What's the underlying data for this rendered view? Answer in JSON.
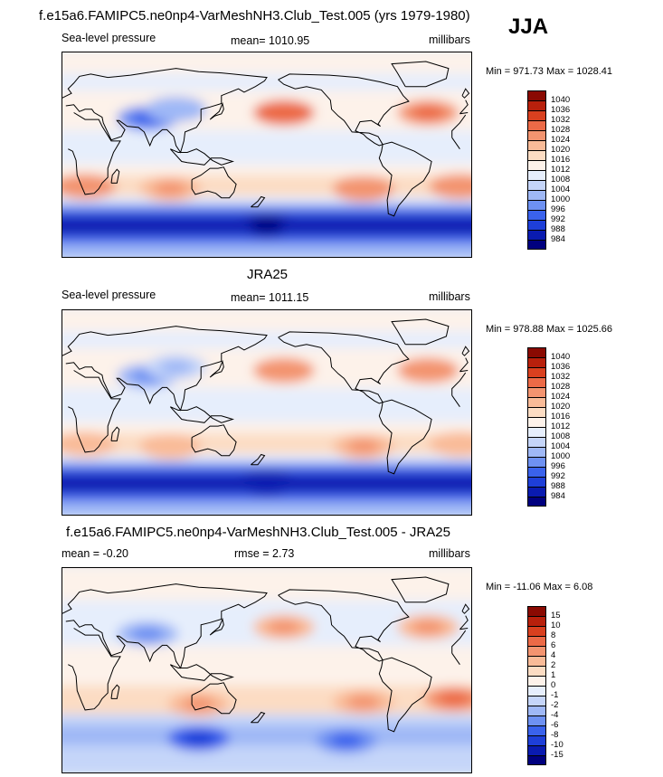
{
  "header": {
    "title": "f.e15a6.FAMIPC5.ne0np4-VarMeshNH3.Club_Test.005 (yrs 1979-1980)",
    "season": "JJA"
  },
  "colors": {
    "slp": [
      "#00007f",
      "#0a1bb0",
      "#1e3fd8",
      "#3a62ec",
      "#6e91f2",
      "#9fb8f6",
      "#c5d5f9",
      "#e6eefc",
      "#fdf2ea",
      "#fcdcc3",
      "#f9bb98",
      "#f39470",
      "#ec6a47",
      "#d9401f",
      "#b8200c",
      "#8a0a02"
    ],
    "diff": [
      "#00007f",
      "#0a1bb0",
      "#1e3fd8",
      "#3a62ec",
      "#6e91f2",
      "#9fb8f6",
      "#c5d5f9",
      "#e6eefc",
      "#fdf2ea",
      "#fcdcc3",
      "#f9bb98",
      "#f39470",
      "#ec6a47",
      "#d9401f",
      "#b8200c",
      "#8a0a02"
    ]
  },
  "chart_data": [
    {
      "type": "heatmap",
      "title": "",
      "variable": "Sea-level pressure",
      "mean_label": "mean= 1010.95",
      "units": "millibars",
      "minmax": "Min = 971.73 Max = 1028.41",
      "stats": {
        "mean": 1010.95,
        "min": 971.73,
        "max": 1028.41
      },
      "levels": [
        "1040",
        "1036",
        "1032",
        "1028",
        "1024",
        "1020",
        "1016",
        "1012",
        "1008",
        "1004",
        "1000",
        "996",
        "992",
        "988",
        "984"
      ],
      "features": [
        {
          "lon": 195,
          "lat": 37,
          "value": 1028
        },
        {
          "lon": 322,
          "lat": 37,
          "value": 1026
        },
        {
          "lon": 75,
          "lat": 32,
          "value": 996
        },
        {
          "lon": 100,
          "lat": 40,
          "value": 1002
        },
        {
          "lon": 20,
          "lat": -28,
          "value": 1024
        },
        {
          "lon": 95,
          "lat": -30,
          "value": 1022
        },
        {
          "lon": 265,
          "lat": -30,
          "value": 1024
        },
        {
          "lon": 350,
          "lat": -28,
          "value": 1024
        },
        {
          "lon": 180,
          "lat": -62,
          "value": 984
        }
      ]
    },
    {
      "type": "heatmap",
      "title": "JRA25",
      "variable": "Sea-level pressure",
      "mean_label": "mean= 1011.15",
      "units": "millibars",
      "minmax": "Min = 978.88 Max = 1025.66",
      "stats": {
        "mean": 1011.15,
        "min": 978.88,
        "max": 1025.66
      },
      "levels": [
        "1040",
        "1036",
        "1032",
        "1028",
        "1024",
        "1020",
        "1016",
        "1012",
        "1008",
        "1004",
        "1000",
        "996",
        "992",
        "988",
        "984"
      ],
      "features": [
        {
          "lon": 195,
          "lat": 37,
          "value": 1025
        },
        {
          "lon": 322,
          "lat": 37,
          "value": 1025
        },
        {
          "lon": 75,
          "lat": 32,
          "value": 1000
        },
        {
          "lon": 100,
          "lat": 40,
          "value": 1004
        },
        {
          "lon": 20,
          "lat": -28,
          "value": 1021
        },
        {
          "lon": 95,
          "lat": -30,
          "value": 1021
        },
        {
          "lon": 265,
          "lat": -30,
          "value": 1022
        },
        {
          "lon": 350,
          "lat": -28,
          "value": 1021
        },
        {
          "lon": 180,
          "lat": -62,
          "value": 986
        }
      ]
    },
    {
      "type": "heatmap",
      "title": "f.e15a6.FAMIPC5.ne0np4-VarMeshNH3.Club_Test.005 - JRA25",
      "mean_label": "mean =  -0.20",
      "rmse_label": "rmse =   2.73",
      "units": "millibars",
      "minmax": "Min = -11.06 Max =  6.08",
      "stats": {
        "mean": -0.2,
        "rmse": 2.73,
        "min": -11.06,
        "max": 6.08
      },
      "levels": [
        "15",
        "10",
        "8",
        "6",
        "4",
        "2",
        "1",
        "0",
        "-1",
        "-2",
        "-4",
        "-6",
        "-8",
        "-10",
        "-15"
      ],
      "features": [
        {
          "lon": 195,
          "lat": 38,
          "value": 3
        },
        {
          "lon": 322,
          "lat": 38,
          "value": 3
        },
        {
          "lon": 75,
          "lat": 32,
          "value": -4
        },
        {
          "lon": 120,
          "lat": -30,
          "value": 3
        },
        {
          "lon": 265,
          "lat": -28,
          "value": 3
        },
        {
          "lon": 345,
          "lat": -25,
          "value": 5
        },
        {
          "lon": 120,
          "lat": -60,
          "value": -8
        },
        {
          "lon": 250,
          "lat": -62,
          "value": -6
        }
      ]
    }
  ]
}
